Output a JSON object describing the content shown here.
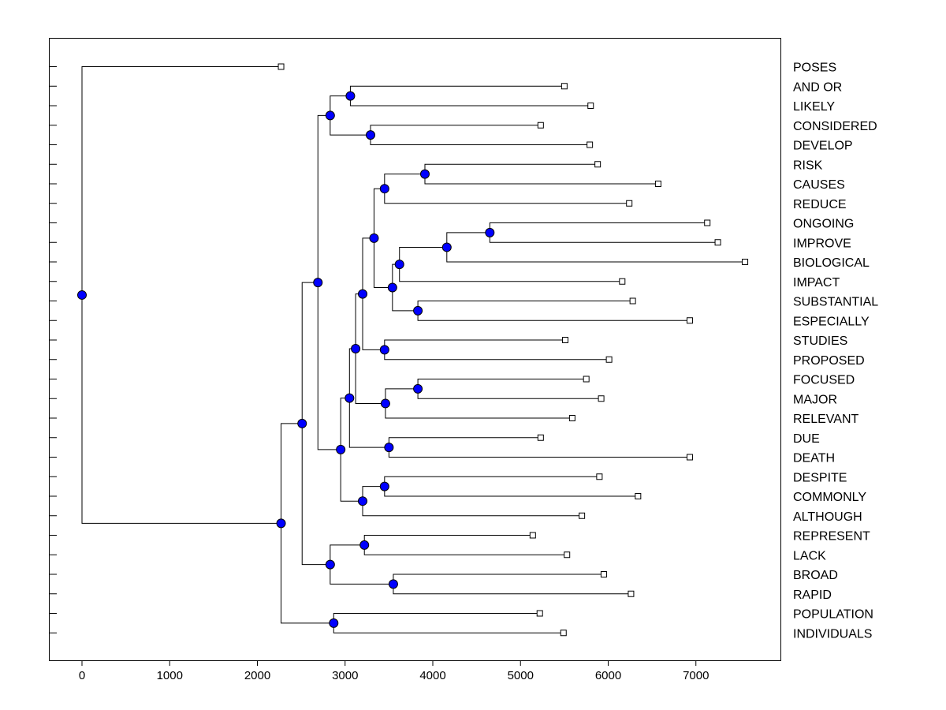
{
  "chart_data": {
    "type": "dendrogram",
    "title": "",
    "xlabel": "",
    "ylabel": "",
    "xlim": [
      -380,
      7900
    ],
    "xticks": [
      0,
      1000,
      2000,
      3000,
      4000,
      5000,
      6000,
      7000
    ],
    "leaf_labels_side": "right",
    "node_color": "#0000ff",
    "leaves": [
      {
        "label": "POSES",
        "height": 2270
      },
      {
        "label": "AND OR",
        "height": 5500
      },
      {
        "label": "LIKELY",
        "height": 5800
      },
      {
        "label": "CONSIDERED",
        "height": 5230
      },
      {
        "label": "DEVELOP",
        "height": 5790
      },
      {
        "label": "RISK",
        "height": 5880
      },
      {
        "label": "CAUSES",
        "height": 6570
      },
      {
        "label": "REDUCE",
        "height": 6240
      },
      {
        "label": "ONGOING",
        "height": 7130
      },
      {
        "label": "IMPROVE",
        "height": 7250
      },
      {
        "label": "BIOLOGICAL",
        "height": 7560
      },
      {
        "label": "IMPACT",
        "height": 6160
      },
      {
        "label": "SUBSTANTIAL",
        "height": 6280
      },
      {
        "label": "ESPECIALLY",
        "height": 6930
      },
      {
        "label": "STUDIES",
        "height": 5510
      },
      {
        "label": "PROPOSED",
        "height": 6010
      },
      {
        "label": "FOCUSED",
        "height": 5750
      },
      {
        "label": "MAJOR",
        "height": 5920
      },
      {
        "label": "RELEVANT",
        "height": 5590
      },
      {
        "label": "DUE",
        "height": 5230
      },
      {
        "label": "DEATH",
        "height": 6930
      },
      {
        "label": "DESPITE",
        "height": 5900
      },
      {
        "label": "COMMONLY",
        "height": 6340
      },
      {
        "label": "ALTHOUGH",
        "height": 5700
      },
      {
        "label": "REPRESENT",
        "height": 5140
      },
      {
        "label": "LACK",
        "height": 5530
      },
      {
        "label": "BROAD",
        "height": 5950
      },
      {
        "label": "RAPID",
        "height": 6260
      },
      {
        "label": "POPULATION",
        "height": 5220
      },
      {
        "label": "INDIVIDUALS",
        "height": 5490
      }
    ],
    "merges": [
      {
        "id": "n1",
        "left": "AND OR",
        "right": "LIKELY",
        "height": 3060
      },
      {
        "id": "n2",
        "left": "CONSIDERED",
        "right": "DEVELOP",
        "height": 3290
      },
      {
        "id": "n3",
        "left": "n1",
        "right": "n2",
        "height": 2830
      },
      {
        "id": "n4",
        "left": "RISK",
        "right": "CAUSES",
        "height": 3910
      },
      {
        "id": "n5",
        "left": "n4",
        "right": "REDUCE",
        "height": 3450
      },
      {
        "id": "n6",
        "left": "ONGOING",
        "right": "IMPROVE",
        "height": 4650
      },
      {
        "id": "n7",
        "left": "n6",
        "right": "BIOLOGICAL",
        "height": 4160
      },
      {
        "id": "n8",
        "left": "n7",
        "right": "IMPACT",
        "height": 3620
      },
      {
        "id": "n9",
        "left": "SUBSTANTIAL",
        "right": "ESPECIALLY",
        "height": 3830
      },
      {
        "id": "n10",
        "left": "n8",
        "right": "n9",
        "height": 3540
      },
      {
        "id": "n11",
        "left": "n5",
        "right": "n10",
        "height": 3330
      },
      {
        "id": "n12",
        "left": "STUDIES",
        "right": "PROPOSED",
        "height": 3450
      },
      {
        "id": "n13",
        "left": "n11",
        "right": "n12",
        "height": 3200
      },
      {
        "id": "n14",
        "left": "FOCUSED",
        "right": "MAJOR",
        "height": 3830
      },
      {
        "id": "n15",
        "left": "n14",
        "right": "RELEVANT",
        "height": 3460
      },
      {
        "id": "n16",
        "left": "n13",
        "right": "n15",
        "height": 3120
      },
      {
        "id": "n17",
        "left": "DUE",
        "right": "DEATH",
        "height": 3500
      },
      {
        "id": "n18",
        "left": "n16",
        "right": "n17",
        "height": 3050
      },
      {
        "id": "n19",
        "left": "DESPITE",
        "right": "COMMONLY",
        "height": 3450
      },
      {
        "id": "n20",
        "left": "n19",
        "right": "ALTHOUGH",
        "height": 3200
      },
      {
        "id": "n21",
        "left": "n18",
        "right": "n20",
        "height": 2950
      },
      {
        "id": "n22",
        "left": "n3",
        "right": "n21",
        "height": 2690
      },
      {
        "id": "n23",
        "left": "REPRESENT",
        "right": "LACK",
        "height": 3220
      },
      {
        "id": "n24",
        "left": "BROAD",
        "right": "RAPID",
        "height": 3550
      },
      {
        "id": "n25",
        "left": "n23",
        "right": "n24",
        "height": 2830
      },
      {
        "id": "n26",
        "left": "n22",
        "right": "n25",
        "height": 2510
      },
      {
        "id": "n27",
        "left": "POPULATION",
        "right": "INDIVIDUALS",
        "height": 2870
      },
      {
        "id": "n28",
        "left": "n26",
        "right": "n27",
        "height": 2270
      },
      {
        "id": "n29",
        "left": "POSES",
        "right": "n28",
        "height": 0
      }
    ]
  }
}
